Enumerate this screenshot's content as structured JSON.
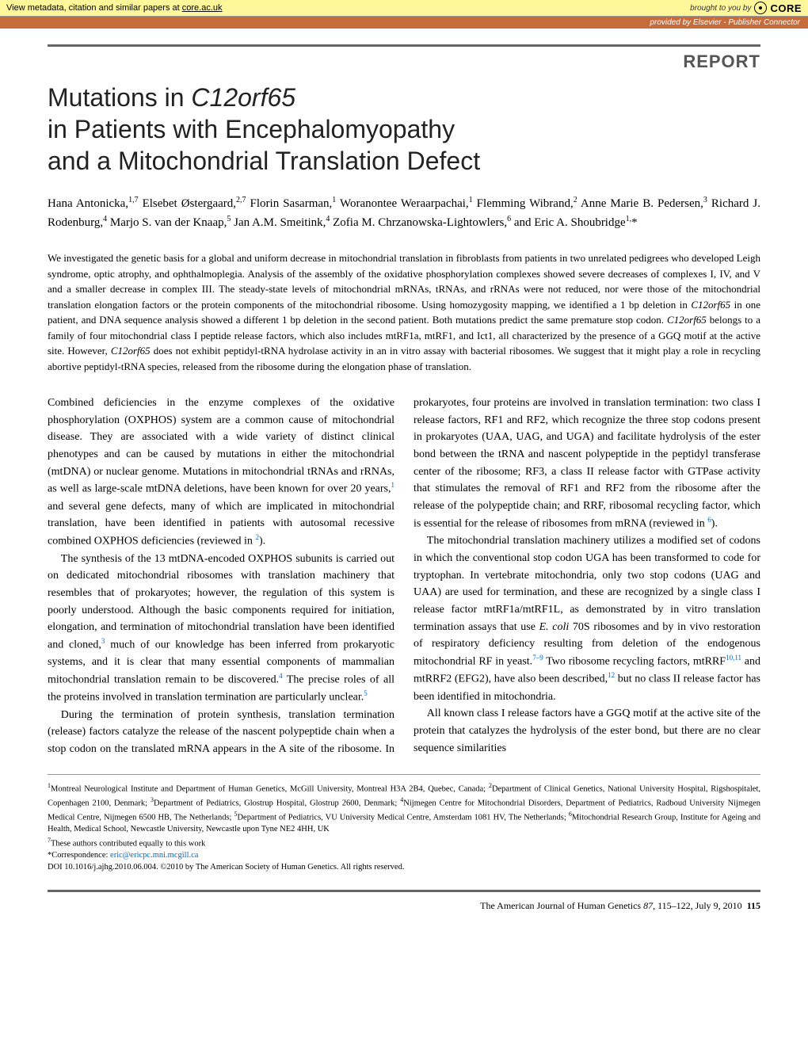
{
  "banner": {
    "left_prefix": "View metadata, citation and similar papers at ",
    "left_link": "core.ac.uk",
    "right_prefix": "brought to you by",
    "logo": "CORE",
    "provider": "provided by Elsevier - Publisher Connector"
  },
  "report_label": "REPORT",
  "title_line1": "Mutations in ",
  "title_gene": "C12orf65",
  "title_line2": "in Patients with Encephalomyopathy",
  "title_line3": "and a Mitochondrial Translation Defect",
  "authors_html": "Hana Antonicka,<sup>1,7</sup> Elsebet Østergaard,<sup>2,7</sup> Florin Sasarman,<sup>1</sup> Woranontee Weraarpachai,<sup>1</sup> Flemming Wibrand,<sup>2</sup> Anne Marie B. Pedersen,<sup>3</sup> Richard J. Rodenburg,<sup>4</sup> Marjo S. van der Knaap,<sup>5</sup> Jan A.M. Smeitink,<sup>4</sup> Zofia M. Chrzanowska-Lightowlers,<sup>6</sup> and Eric A. Shoubridge<sup>1,</sup>*",
  "abstract": "We investigated the genetic basis for a global and uniform decrease in mitochondrial translation in fibroblasts from patients in two unrelated pedigrees who developed Leigh syndrome, optic atrophy, and ophthalmoplegia. Analysis of the assembly of the oxidative phosphorylation complexes showed severe decreases of complexes I, IV, and V and a smaller decrease in complex III. The steady-state levels of mitochondrial mRNAs, tRNAs, and rRNAs were not reduced, nor were those of the mitochondrial translation elongation factors or the protein components of the mitochondrial ribosome. Using homozygosity mapping, we identified a 1 bp deletion in <span class=\"gene\">C12orf65</span> in one patient, and DNA sequence analysis showed a different 1 bp deletion in the second patient. Both mutations predict the same premature stop codon. <span class=\"gene\">C12orf65</span> belongs to a family of four mitochondrial class I peptide release factors, which also includes mtRF1a, mtRF1, and Ict1, all characterized by the presence of a GGQ motif at the active site. However, <span class=\"gene\">C12orf65</span> does not exhibit peptidyl-tRNA hydrolase activity in an in vitro assay with bacterial ribosomes. We suggest that it might play a role in recycling abortive peptidyl-tRNA species, released from the ribosome during the elongation phase of translation.",
  "body": {
    "p1": "Combined deficiencies in the enzyme complexes of the oxidative phosphorylation (OXPHOS) system are a common cause of mitochondrial disease. They are associated with a wide variety of distinct clinical phenotypes and can be caused by mutations in either the mitochondrial (mtDNA) or nuclear genome. Mutations in mitochondrial tRNAs and rRNAs, as well as large-scale mtDNA deletions, have been known for over 20 years,<sup>1</sup> and several gene defects, many of which are implicated in mitochondrial translation, have been identified in patients with autosomal recessive combined OXPHOS deficiencies (reviewed in <sup>2</sup>).",
    "p2": "The synthesis of the 13 mtDNA-encoded OXPHOS subunits is carried out on dedicated mitochondrial ribosomes with translation machinery that resembles that of prokaryotes; however, the regulation of this system is poorly understood. Although the basic components required for initiation, elongation, and termination of mitochondrial translation have been identified and cloned,<sup>3</sup> much of our knowledge has been inferred from prokaryotic systems, and it is clear that many essential components of mammalian mitochondrial translation remain to be discovered.<sup>4</sup> The precise roles of all the proteins involved in translation termination are particularly unclear.<sup>5</sup>",
    "p3": "During the termination of protein synthesis, translation termination (release) factors catalyze the release of the nascent polypeptide chain when a stop codon on the translated mRNA appears in the A site of the ribosome. In prokaryotes, four proteins are involved in translation termination: two class I release factors, RF1 and RF2, which recognize the three stop codons present in prokaryotes (UAA, UAG, and UGA) and facilitate hydrolysis of the ester bond between the tRNA and nascent polypeptide in the peptidyl transferase center of the ribosome; RF3, a class II release factor with GTPase activity that stimulates the removal of RF1 and RF2 from the ribosome after the release of the polypeptide chain; and RRF, ribosomal recycling factor, which is essential for the release of ribosomes from mRNA (reviewed in <sup>6</sup>).",
    "p4": "The mitochondrial translation machinery utilizes a modified set of codons in which the conventional stop codon UGA has been transformed to code for tryptophan. In vertebrate mitochondria, only two stop codons (UAG and UAA) are used for termination, and these are recognized by a single class I release factor mtRF1a/mtRF1L, as demonstrated by in vitro translation termination assays that use <span class=\"gene\">E. coli</span> 70S ribosomes and by in vivo restoration of respiratory deficiency resulting from deletion of the endogenous mitochondrial RF in yeast.<sup>7–9</sup> Two ribosome recycling factors, mtRRF<sup>10,11</sup> and mtRRF2 (EFG2), have also been described,<sup>12</sup> but no class II release factor has been identified in mitochondria.",
    "p5": "All known class I release factors have a GGQ motif at the active site of the protein that catalyzes the hydrolysis of the ester bond, but there are no clear sequence similarities"
  },
  "affiliations": "<sup>1</sup>Montreal Neurological Institute and Department of Human Genetics, McGill University, Montreal H3A 2B4, Quebec, Canada; <sup>2</sup>Department of Clinical Genetics, National University Hospital, Rigshospitalet, Copenhagen 2100, Denmark; <sup>3</sup>Department of Pediatrics, Glostrup Hospital, Glostrup 2600, Denmark; <sup>4</sup>Nijmegen Centre for Mitochondrial Disorders, Department of Pediatrics, Radboud University Nijmegen Medical Centre, Nijmegen 6500 HB, The Netherlands; <sup>5</sup>Department of Pediatrics, VU University Medical Centre, Amsterdam 1081 HV, The Netherlands; <sup>6</sup>Mitochondrial Research Group, Institute for Ageing and Health, Medical School, Newcastle University, Newcastle upon Tyne NE2 4HH, UK",
  "equal_contrib": "<sup>7</sup>These authors contributed equally to this work",
  "correspondence_label": "*Correspondence: ",
  "correspondence_email": "eric@ericpc.mni.mcgill.ca",
  "doi_line": "DOI 10.1016/j.ajhg.2010.06.004. ©2010 by The American Society of Human Genetics. All rights reserved.",
  "footer": {
    "journal": "The American Journal of Human Genetics ",
    "volume": "87",
    "pages": ", 115–122, July 9, 2010",
    "page_number": "115"
  }
}
